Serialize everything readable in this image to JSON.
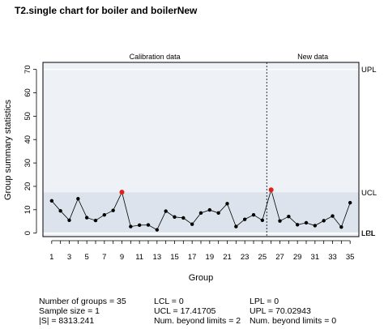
{
  "chart_data": {
    "type": "line",
    "title": "T2.single chart for boiler and boilerNew",
    "xlabel": "Group",
    "ylabel": "Group summary statistics",
    "ylim": [
      -1.5,
      73
    ],
    "xlim": [
      0,
      36
    ],
    "y_ticks": [
      0,
      10,
      20,
      30,
      40,
      50,
      60,
      70
    ],
    "x_ticks": [
      1,
      3,
      5,
      7,
      9,
      11,
      13,
      15,
      17,
      19,
      21,
      23,
      25,
      27,
      29,
      31,
      33,
      35
    ],
    "section_labels": [
      "Calibration data",
      "New data"
    ],
    "divider_x": 25.5,
    "limit_lines": {
      "UPL": 70.02943,
      "UCL": 17.41705,
      "LCL": 0,
      "LPL": 0
    },
    "limit_labels": [
      "UPL",
      "UCL",
      "LCL",
      "LPL"
    ],
    "groups": [
      1,
      2,
      3,
      4,
      5,
      6,
      7,
      8,
      9,
      10,
      11,
      12,
      13,
      14,
      15,
      16,
      17,
      18,
      19,
      20,
      21,
      22,
      23,
      24,
      25,
      26,
      27,
      28,
      29,
      30,
      31,
      32,
      33,
      34,
      35
    ],
    "values": [
      13.8,
      9.5,
      5.5,
      14.7,
      6.6,
      5.4,
      7.8,
      9.7,
      17.5,
      2.8,
      3.4,
      3.5,
      1.4,
      9.4,
      6.9,
      6.5,
      3.8,
      8.6,
      9.9,
      8.6,
      12.6,
      2.8,
      5.9,
      7.8,
      5.5,
      18.5,
      5.2,
      7.1,
      3.6,
      4.4,
      3.2,
      5.3,
      7.3,
      2.6,
      13.0
    ],
    "out_of_control_groups": [
      9,
      26
    ],
    "colors": {
      "plot_bg": "#eef2f7",
      "control_band": "#dce3ec",
      "point": "#000000",
      "violation": "#e0201b"
    }
  },
  "stats": {
    "col1": [
      "Number of groups = 35",
      "Sample size = 1",
      "|S| = 8313.241"
    ],
    "col2": [
      "LCL = 0",
      "UCL = 17.41705",
      "Num. beyond limits = 2"
    ],
    "col3": [
      "LPL = 0",
      "UPL = 70.02943",
      "Num. beyond limits = 0"
    ]
  }
}
